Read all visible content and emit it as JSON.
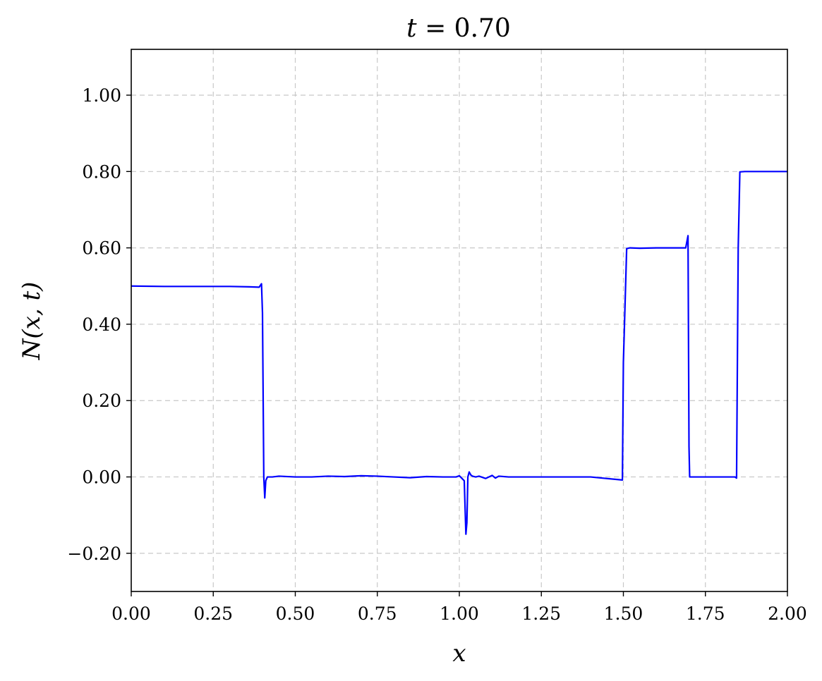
{
  "chart_data": {
    "type": "line",
    "title": "t = 0.70",
    "xlabel": "x",
    "ylabel": "N(x, t)",
    "xlim": [
      0,
      2
    ],
    "ylim": [
      -0.3,
      1.12
    ],
    "grid": true,
    "x_ticks": [
      0,
      0.25,
      0.5,
      0.75,
      1.0,
      1.25,
      1.5,
      1.75,
      2.0
    ],
    "x_tick_labels": [
      "0.00",
      "0.25",
      "0.50",
      "0.75",
      "1.00",
      "1.25",
      "1.50",
      "1.75",
      "2.00"
    ],
    "y_ticks": [
      -0.2,
      0,
      0.2,
      0.4,
      0.6,
      0.8,
      1.0
    ],
    "y_tick_labels": [
      "−0.20",
      "0.00",
      "0.20",
      "0.40",
      "0.60",
      "0.80",
      "1.00"
    ],
    "colors": {
      "series": "#0000ff"
    },
    "series": [
      {
        "x": [
          0,
          0.1,
          0.2,
          0.3,
          0.36,
          0.39,
          0.397,
          0.4,
          0.404,
          0.407,
          0.41,
          0.415,
          0.42,
          0.43,
          0.45,
          0.5,
          0.55,
          0.6,
          0.65,
          0.7,
          0.75,
          0.8,
          0.85,
          0.9,
          0.95,
          0.99,
          1.0,
          1.015,
          1.02,
          1.023,
          1.026,
          1.03,
          1.035,
          1.04,
          1.05,
          1.06,
          1.08,
          1.1,
          1.11,
          1.12,
          1.15,
          1.2,
          1.3,
          1.4,
          1.497,
          1.5,
          1.51,
          1.52,
          1.55,
          1.6,
          1.65,
          1.69,
          1.697,
          1.7,
          1.702,
          1.71,
          1.75,
          1.8,
          1.84,
          1.845,
          1.85,
          1.855,
          1.87,
          1.9,
          2.0
        ],
        "y": [
          0.5,
          0.499,
          0.499,
          0.499,
          0.498,
          0.497,
          0.506,
          0.43,
          0.0,
          -0.055,
          -0.01,
          0.0,
          0.0,
          0.0,
          0.002,
          0.0,
          0.0,
          0.002,
          0.001,
          0.003,
          0.002,
          0.0,
          -0.002,
          0.001,
          0.0,
          0.0,
          0.003,
          -0.01,
          -0.15,
          -0.12,
          0.0,
          0.013,
          0.005,
          0.002,
          0.0,
          0.002,
          -0.004,
          0.004,
          -0.003,
          0.002,
          0.0,
          0.0,
          0.0,
          0.0,
          -0.008,
          0.3,
          0.598,
          0.6,
          0.599,
          0.6,
          0.6,
          0.6,
          0.632,
          0.08,
          0.0,
          0.0,
          0.0,
          0.0,
          0.0,
          -0.003,
          0.6,
          0.799,
          0.8,
          0.8,
          0.8
        ]
      }
    ]
  }
}
